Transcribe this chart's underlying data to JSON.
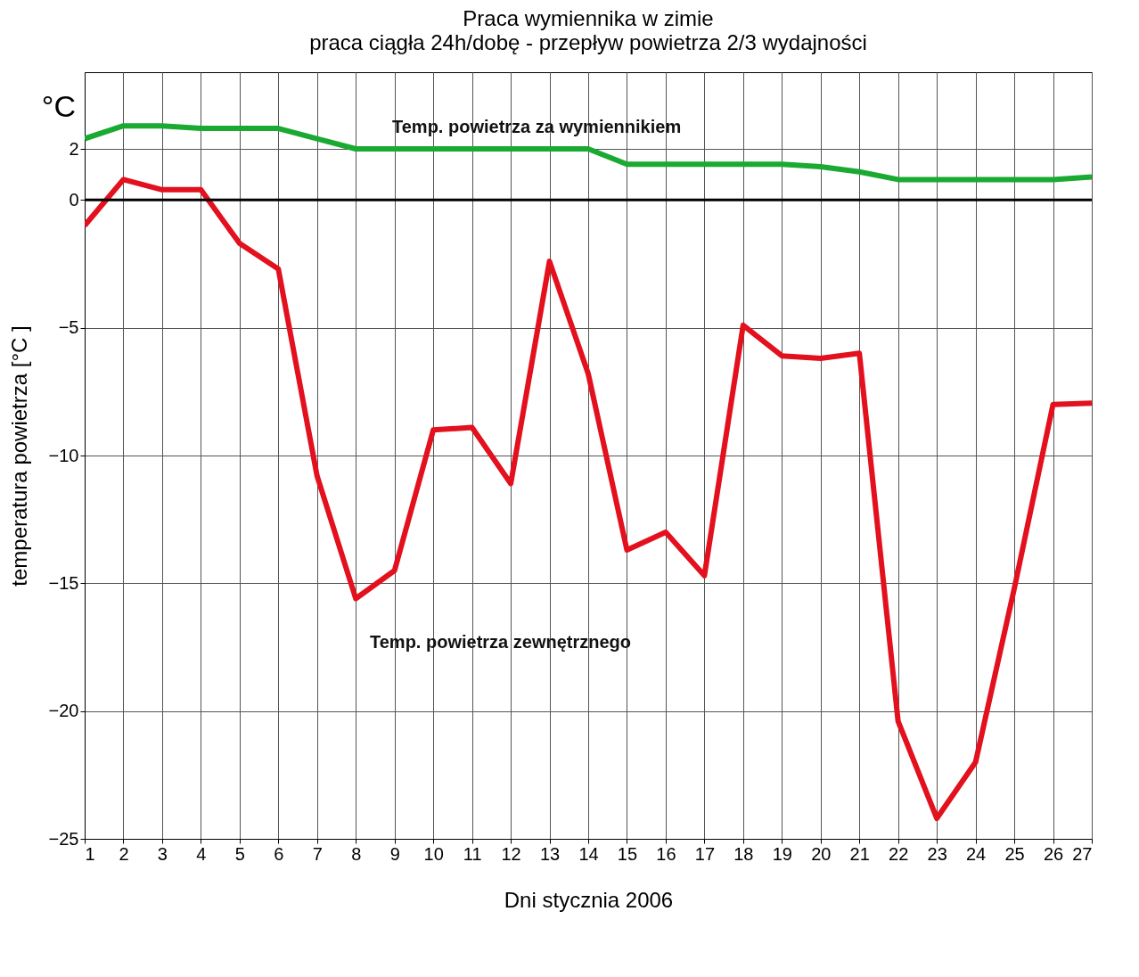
{
  "chart_data": {
    "type": "line",
    "title": "Praca wymiennika w zimie",
    "subtitle": "praca ciągła 24h/dobę - przepływ powietrza 2/3 wydajności",
    "xlabel": "Dni stycznia 2006",
    "ylabel": "temperatura powietrza [°C ]",
    "annotations": [
      "°C"
    ],
    "x": [
      1,
      2,
      3,
      4,
      5,
      6,
      7,
      8,
      9,
      10,
      11,
      12,
      13,
      14,
      15,
      16,
      17,
      18,
      19,
      20,
      21,
      22,
      23,
      24,
      25,
      26,
      27
    ],
    "series": [
      {
        "name": "Temp. powietrza za wymiennikiem",
        "color": "#1aaa32",
        "values": [
          2.4,
          2.9,
          2.9,
          2.8,
          2.8,
          2.8,
          2.4,
          2.0,
          2.0,
          2.0,
          2.0,
          2.0,
          2.0,
          2.0,
          1.4,
          1.4,
          1.4,
          1.4,
          1.4,
          1.3,
          1.1,
          0.8,
          0.8,
          0.8,
          0.8,
          0.8,
          0.9
        ]
      },
      {
        "name": "Temp. powietrza zewnętrznego",
        "color": "#e3101e",
        "values": [
          -1.0,
          0.8,
          0.4,
          0.4,
          -1.7,
          -2.7,
          -10.8,
          -15.6,
          -14.5,
          -9.0,
          -8.9,
          -11.1,
          -2.4,
          -6.8,
          -13.7,
          -13.0,
          -14.7,
          -4.9,
          -6.1,
          -6.2,
          -6.0,
          -20.4,
          -24.2,
          -22.0,
          -15.2,
          -8.0,
          -7.95
        ]
      }
    ],
    "xlim": [
      1,
      27
    ],
    "xticks": [
      1,
      2,
      3,
      4,
      5,
      6,
      7,
      8,
      9,
      10,
      11,
      12,
      13,
      14,
      15,
      16,
      17,
      18,
      19,
      20,
      21,
      22,
      23,
      24,
      25,
      26,
      27
    ],
    "ylim": [
      -25,
      5
    ],
    "yticks": [
      -25,
      -20,
      -15,
      -10,
      -5,
      0,
      2
    ],
    "ref_lines": [
      {
        "axis": "y",
        "value": 0,
        "color": "#000000"
      }
    ],
    "grid": true,
    "marker": "none",
    "line_style": "solid"
  }
}
